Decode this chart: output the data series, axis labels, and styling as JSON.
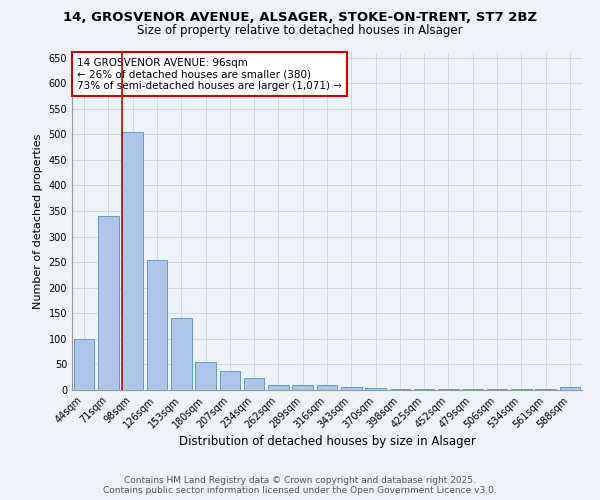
{
  "title1": "14, GROSVENOR AVENUE, ALSAGER, STOKE-ON-TRENT, ST7 2BZ",
  "title2": "Size of property relative to detached houses in Alsager",
  "xlabel": "Distribution of detached houses by size in Alsager",
  "ylabel": "Number of detached properties",
  "categories": [
    "44sqm",
    "71sqm",
    "98sqm",
    "126sqm",
    "153sqm",
    "180sqm",
    "207sqm",
    "234sqm",
    "262sqm",
    "289sqm",
    "316sqm",
    "343sqm",
    "370sqm",
    "398sqm",
    "425sqm",
    "452sqm",
    "479sqm",
    "506sqm",
    "534sqm",
    "561sqm",
    "588sqm"
  ],
  "values": [
    100,
    340,
    505,
    255,
    140,
    55,
    38,
    23,
    10,
    10,
    10,
    5,
    3,
    1,
    1,
    1,
    1,
    1,
    1,
    1,
    5
  ],
  "bar_color": "#aec6e8",
  "bar_edge_color": "#5b9bd5",
  "red_line_index": 2,
  "red_line_color": "#cc0000",
  "annotation_text": "14 GROSVENOR AVENUE: 96sqm\n← 26% of detached houses are smaller (380)\n73% of semi-detached houses are larger (1,071) →",
  "annotation_box_color": "#ffffff",
  "annotation_box_edge": "#cc0000",
  "ylim": [
    0,
    660
  ],
  "yticks": [
    0,
    50,
    100,
    150,
    200,
    250,
    300,
    350,
    400,
    450,
    500,
    550,
    600,
    650
  ],
  "footer1": "Contains HM Land Registry data © Crown copyright and database right 2025.",
  "footer2": "Contains public sector information licensed under the Open Government Licence v3.0.",
  "bg_color": "#eef2f9",
  "grid_color": "#c8d0e0",
  "title1_fontsize": 9.5,
  "title2_fontsize": 8.5,
  "xlabel_fontsize": 8.5,
  "ylabel_fontsize": 8,
  "tick_fontsize": 7,
  "annotation_fontsize": 7.5,
  "footer_fontsize": 6.5
}
